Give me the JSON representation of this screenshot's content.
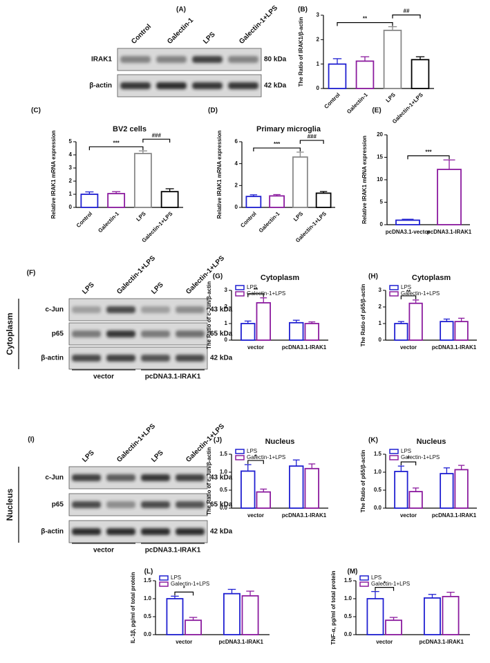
{
  "blots": [
    {
      "panel": "(A)",
      "lanes": [
        "Control",
        "Galectin-1",
        "LPS",
        "Galectin-1+LPS"
      ],
      "rows": [
        {
          "name": "IRAK1",
          "size": "80 kDa"
        },
        {
          "name": "β-actin",
          "size": "42 kDa"
        }
      ]
    },
    {
      "panel": "(F)",
      "compartment": "Cytoplasm",
      "lanes": [
        "LPS",
        "Galectin-1+LPS",
        "LPS",
        "Galectin-1+LPS"
      ],
      "rows": [
        {
          "name": "c-Jun",
          "size": "43 kDa"
        },
        {
          "name": "p65",
          "size": "65 kDa"
        },
        {
          "name": "β-actin",
          "size": "42 kDa"
        }
      ],
      "groups": [
        "vector",
        "pcDNA3.1-IRAK1"
      ]
    },
    {
      "panel": "(I)",
      "compartment": "Nucleus",
      "lanes": [
        "LPS",
        "Galectin-1+LPS",
        "LPS",
        "Galectin-1+LPS"
      ],
      "rows": [
        {
          "name": "c-Jun",
          "size": "43 kDa"
        },
        {
          "name": "p65",
          "size": "65 kDa"
        },
        {
          "name": "β-actin",
          "size": "42 kDa"
        }
      ],
      "groups": [
        "vector",
        "pcDNA3.1-IRAK1"
      ]
    }
  ],
  "chart_data": [
    {
      "type": "bar",
      "panel": "(B)",
      "ylabel": "The Ratio of IRAK1/β-actin",
      "categories": [
        "Control",
        "Galectin-1",
        "LPS",
        "Galectin-1+LPS"
      ],
      "values": [
        1.0,
        1.12,
        2.38,
        1.18
      ],
      "errors": [
        0.22,
        0.18,
        0.15,
        0.12
      ],
      "colors": [
        "#1f1fd1",
        "#8b1a9e",
        "#888888",
        "#000000"
      ],
      "ylim": [
        0,
        3
      ],
      "yticks": [
        0,
        1,
        2,
        3
      ],
      "annotations": [
        {
          "text": "**",
          "between": [
            "Control",
            "LPS"
          ]
        },
        {
          "text": "##",
          "between": [
            "LPS",
            "Galectin-1+LPS"
          ]
        }
      ]
    },
    {
      "type": "bar",
      "panel": "(C)",
      "title": "BV2 cells",
      "ylabel": "Relative IRAK1 mRNA expression",
      "categories": [
        "Control",
        "Galectin-1",
        "LPS",
        "Galectin-1+LPS"
      ],
      "values": [
        1.0,
        1.05,
        4.1,
        1.2
      ],
      "errors": [
        0.18,
        0.15,
        0.2,
        0.22
      ],
      "colors": [
        "#1f1fd1",
        "#8b1a9e",
        "#888888",
        "#000000"
      ],
      "ylim": [
        0,
        5
      ],
      "yticks": [
        0,
        1,
        2,
        3,
        4,
        5
      ],
      "annotations": [
        {
          "text": "***",
          "between": [
            "Control",
            "LPS"
          ]
        },
        {
          "text": "###",
          "between": [
            "LPS",
            "Galectin-1+LPS"
          ]
        }
      ]
    },
    {
      "type": "bar",
      "panel": "(D)",
      "title": "Primary microglia",
      "ylabel": "Relative IRAK1 mRNA expression",
      "categories": [
        "Control",
        "Galectin-1",
        "LPS",
        "Galectin-1+LPS"
      ],
      "values": [
        1.0,
        1.05,
        4.6,
        1.3
      ],
      "errors": [
        0.15,
        0.12,
        0.45,
        0.15
      ],
      "colors": [
        "#1f1fd1",
        "#8b1a9e",
        "#888888",
        "#000000"
      ],
      "ylim": [
        0,
        6
      ],
      "yticks": [
        0,
        2,
        4,
        6
      ],
      "annotations": [
        {
          "text": "***",
          "between": [
            "Control",
            "LPS"
          ]
        },
        {
          "text": "###",
          "between": [
            "LPS",
            "Galectin-1+LPS"
          ]
        }
      ]
    },
    {
      "type": "bar",
      "panel": "(E)",
      "ylabel": "Relative IRAK1 mRNA expression",
      "categories": [
        "pcDNA3.1-vector",
        "pcDNA3.1-IRAK1"
      ],
      "values": [
        1.0,
        12.3
      ],
      "errors": [
        0.2,
        2.1
      ],
      "colors": [
        "#1f1fd1",
        "#8b1a9e"
      ],
      "ylim": [
        0,
        20
      ],
      "yticks": [
        0,
        5,
        10,
        15,
        20
      ],
      "annotations": [
        {
          "text": "***",
          "between": [
            "pcDNA3.1-vector",
            "pcDNA3.1-IRAK1"
          ]
        }
      ]
    },
    {
      "type": "grouped_bar",
      "panel": "(G)",
      "title": "Cytoplasm",
      "ylabel": "The Ratio of c-Jun/β-actin",
      "categories": [
        "vector",
        "pcDNA3.1-IRAK1"
      ],
      "series": [
        {
          "name": "LPS",
          "color": "#1f1fd1",
          "values": [
            1.0,
            1.05
          ],
          "errors": [
            0.15,
            0.15
          ]
        },
        {
          "name": "Galectin-1+LPS",
          "color": "#8b1a9e",
          "values": [
            2.25,
            1.0
          ],
          "errors": [
            0.3,
            0.1
          ]
        }
      ],
      "ylim": [
        0,
        3
      ],
      "yticks": [
        0,
        1,
        2,
        3
      ],
      "legend": "upper left",
      "annotations": [
        {
          "text": "**",
          "category": "vector"
        }
      ]
    },
    {
      "type": "grouped_bar",
      "panel": "(H)",
      "title": "Cytoplasm",
      "ylabel": "The Ratio of p65/β-actin",
      "categories": [
        "vector",
        "pcDNA3.1-IRAK1"
      ],
      "series": [
        {
          "name": "LPS",
          "color": "#1f1fd1",
          "values": [
            1.0,
            1.12
          ],
          "errors": [
            0.12,
            0.15
          ]
        },
        {
          "name": "Galectin-1+LPS",
          "color": "#8b1a9e",
          "values": [
            2.22,
            1.12
          ],
          "errors": [
            0.2,
            0.2
          ]
        }
      ],
      "ylim": [
        0,
        3
      ],
      "yticks": [
        0,
        1,
        2,
        3
      ],
      "legend": "upper left",
      "annotations": [
        {
          "text": "**",
          "category": "vector"
        }
      ]
    },
    {
      "type": "grouped_bar",
      "panel": "(J)",
      "title": "Nucleus",
      "ylabel": "The Ratio of c-Jun/β-actin",
      "categories": [
        "vector",
        "pcDNA3.1-IRAK1"
      ],
      "series": [
        {
          "name": "LPS",
          "color": "#1f1fd1",
          "values": [
            1.03,
            1.17
          ],
          "errors": [
            0.18,
            0.17
          ]
        },
        {
          "name": "Galectin-1+LPS",
          "color": "#8b1a9e",
          "values": [
            0.45,
            1.1
          ],
          "errors": [
            0.08,
            0.13
          ]
        }
      ],
      "ylim": [
        0,
        1.5
      ],
      "yticks": [
        {
          "value": 0,
          "label": "0.0"
        },
        0.5,
        {
          "value": 1,
          "label": "1.0"
        },
        1.5
      ],
      "legend": "upper left",
      "annotations": [
        {
          "text": "*",
          "category": "vector"
        }
      ]
    },
    {
      "type": "grouped_bar",
      "panel": "(K)",
      "title": "Nucleus",
      "ylabel": "The Ratio of p65/β-actin",
      "categories": [
        "vector",
        "pcDNA3.1-IRAK1"
      ],
      "series": [
        {
          "name": "LPS",
          "color": "#1f1fd1",
          "values": [
            1.02,
            0.96
          ],
          "errors": [
            0.15,
            0.16
          ]
        },
        {
          "name": "Galectin-1+LPS",
          "color": "#8b1a9e",
          "values": [
            0.46,
            1.07
          ],
          "errors": [
            0.1,
            0.12
          ]
        }
      ],
      "ylim": [
        0,
        1.5
      ],
      "yticks": [
        {
          "value": 0,
          "label": "0.0"
        },
        0.5,
        {
          "value": 1,
          "label": "1.0"
        },
        1.5
      ],
      "legend": "upper left",
      "annotations": [
        {
          "text": "*",
          "category": "vector"
        }
      ]
    },
    {
      "type": "grouped_bar",
      "panel": "(L)",
      "ylabel": "IL-1β, pg/ml of total protein",
      "categories": [
        "vector",
        "pcDNA3.1-IRAK1"
      ],
      "series": [
        {
          "name": "LPS",
          "color": "#1f1fd1",
          "values": [
            1.0,
            1.14
          ],
          "errors": [
            0.07,
            0.12
          ]
        },
        {
          "name": "Galectin-1+LPS",
          "color": "#8b1a9e",
          "values": [
            0.4,
            1.08
          ],
          "errors": [
            0.08,
            0.13
          ]
        }
      ],
      "ylim": [
        0,
        1.5
      ],
      "yticks": [
        {
          "value": 0,
          "label": "0.0"
        },
        0.5,
        {
          "value": 1,
          "label": "1.0"
        },
        1.5
      ],
      "legend": "upper left",
      "annotations": [
        {
          "text": "*",
          "category": "vector"
        }
      ]
    },
    {
      "type": "grouped_bar",
      "panel": "(M)",
      "ylabel": "TNF-α, pg/ml of total protein",
      "categories": [
        "vector",
        "pcDNA3.1-IRAK1"
      ],
      "series": [
        {
          "name": "LPS",
          "color": "#1f1fd1",
          "values": [
            1.0,
            1.02
          ],
          "errors": [
            0.2,
            0.1
          ]
        },
        {
          "name": "Galectin-1+LPS",
          "color": "#8b1a9e",
          "values": [
            0.4,
            1.06
          ],
          "errors": [
            0.08,
            0.12
          ]
        }
      ],
      "ylim": [
        0,
        1.5
      ],
      "yticks": [
        {
          "value": 0,
          "label": "0.0"
        },
        0.5,
        {
          "value": 1,
          "label": "1.0"
        },
        1.5
      ],
      "legend": "upper left",
      "annotations": [
        {
          "text": "*",
          "category": "vector"
        }
      ]
    }
  ]
}
